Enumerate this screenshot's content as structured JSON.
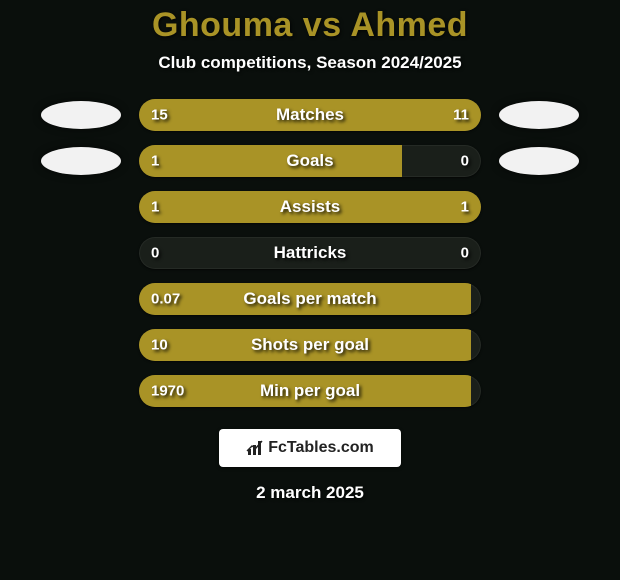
{
  "meta": {
    "background_color": "#0a0f0c",
    "title_color": "#a99326",
    "text_color": "#ffffff",
    "avatar_fill": "#f2f2f2"
  },
  "header": {
    "player1": "Ghouma",
    "vs": "vs",
    "player2": "Ahmed",
    "subtitle": "Club competitions, Season 2024/2025"
  },
  "bars": {
    "track_bg": "#1a1f1a",
    "left_color": "#a99326",
    "right_color": "#a99326",
    "height": 32,
    "radius": 16
  },
  "stats": [
    {
      "label": "Matches",
      "left_val": "15",
      "right_val": "11",
      "left_pct": 58,
      "right_pct": 42,
      "show_avatars": true
    },
    {
      "label": "Goals",
      "left_val": "1",
      "right_val": "0",
      "left_pct": 77,
      "right_pct": 0,
      "show_avatars": true
    },
    {
      "label": "Assists",
      "left_val": "1",
      "right_val": "1",
      "left_pct": 50,
      "right_pct": 50,
      "show_avatars": false
    },
    {
      "label": "Hattricks",
      "left_val": "0",
      "right_val": "0",
      "left_pct": 0,
      "right_pct": 0,
      "show_avatars": false
    },
    {
      "label": "Goals per match",
      "left_val": "0.07",
      "right_val": "",
      "left_pct": 97,
      "right_pct": 0,
      "show_avatars": false
    },
    {
      "label": "Shots per goal",
      "left_val": "10",
      "right_val": "",
      "left_pct": 97,
      "right_pct": 0,
      "show_avatars": false
    },
    {
      "label": "Min per goal",
      "left_val": "1970",
      "right_val": "",
      "left_pct": 97,
      "right_pct": 0,
      "show_avatars": false
    }
  ],
  "branding": {
    "text": "FcTables.com",
    "bg": "#ffffff",
    "text_color": "#222222"
  },
  "footer": {
    "date": "2 march 2025"
  }
}
